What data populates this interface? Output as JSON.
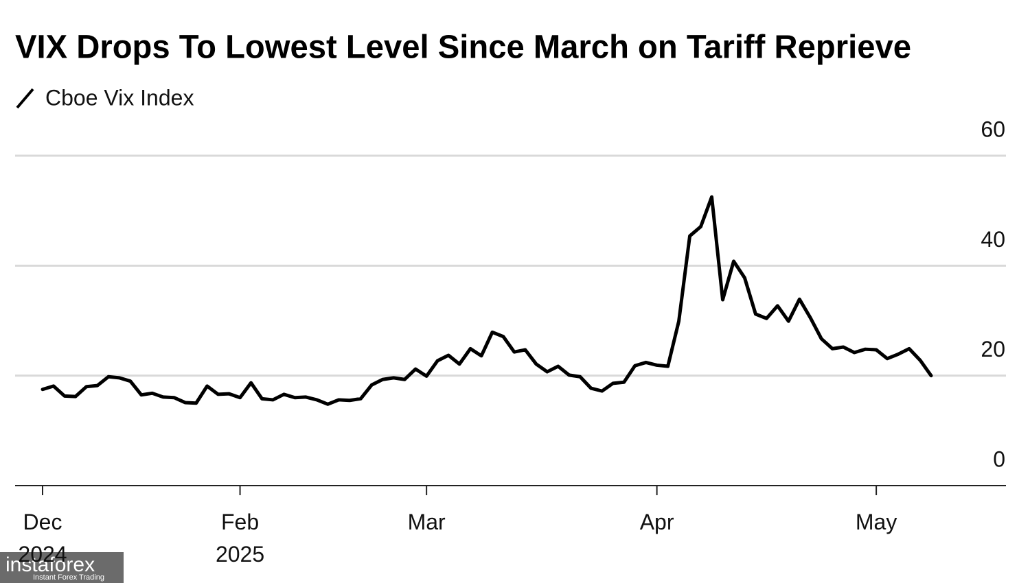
{
  "chart_data": {
    "type": "line",
    "title": "VIX Drops To Lowest Level Since March on Tariff Reprieve",
    "categories": [
      "Dec 2024",
      null,
      null,
      null,
      null,
      null,
      null,
      null,
      null,
      null,
      null,
      null,
      null,
      null,
      null,
      null,
      null,
      null,
      "Feb 2025",
      null,
      null,
      null,
      null,
      null,
      null,
      null,
      null,
      null,
      null,
      null,
      null,
      null,
      null,
      null,
      null,
      "Mar",
      null,
      null,
      null,
      null,
      null,
      null,
      null,
      null,
      null,
      null,
      null,
      null,
      null,
      null,
      null,
      null,
      null,
      null,
      null,
      null,
      "Apr",
      null,
      null,
      null,
      null,
      null,
      null,
      null,
      null,
      null,
      null,
      null,
      null,
      null,
      null,
      null,
      null,
      null,
      null,
      null,
      "May",
      null,
      null,
      null,
      null,
      null
    ],
    "series": [
      {
        "name": "Cboe Vix Index",
        "color": "#000000",
        "values": [
          17.5,
          18.1,
          16.3,
          16.2,
          18.0,
          18.2,
          19.8,
          19.6,
          19.0,
          16.5,
          16.8,
          16.1,
          16.0,
          15.1,
          15.0,
          18.1,
          16.6,
          16.7,
          16.0,
          18.7,
          15.8,
          15.6,
          16.6,
          16.0,
          16.1,
          15.6,
          14.8,
          15.6,
          15.5,
          15.8,
          18.3,
          19.3,
          19.6,
          19.3,
          21.2,
          19.9,
          22.7,
          23.7,
          22.1,
          24.9,
          23.6,
          27.9,
          27.1,
          24.3,
          24.7,
          22.1,
          20.7,
          21.7,
          20.1,
          19.8,
          17.7,
          17.2,
          18.6,
          18.8,
          21.8,
          22.4,
          21.9,
          21.7,
          29.9,
          45.4,
          47.1,
          52.5,
          33.8,
          40.8,
          37.8,
          31.2,
          30.4,
          32.7,
          29.9,
          33.9,
          30.5,
          26.7,
          24.9,
          25.2,
          24.2,
          24.8,
          24.7,
          23.1,
          23.9,
          24.9,
          22.8,
          20.0
        ]
      }
    ],
    "ylim": [
      0,
      60
    ],
    "yticks": [
      0,
      20,
      40,
      60
    ],
    "grid": true
  },
  "watermark": {
    "brand": "instaforex",
    "tagline": "Instant Forex Trading"
  }
}
